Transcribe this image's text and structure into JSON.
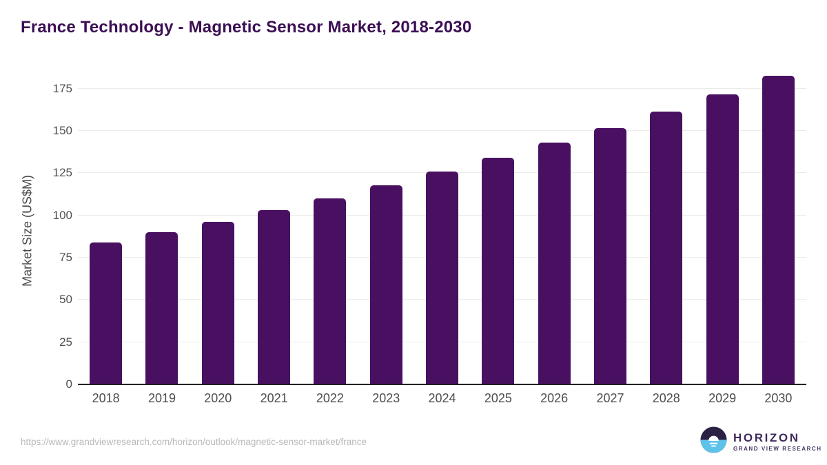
{
  "header": {
    "title": "France Technology - Magnetic Sensor Market, 2018-2030"
  },
  "chart_data": {
    "type": "bar",
    "categories": [
      "2018",
      "2019",
      "2020",
      "2021",
      "2022",
      "2023",
      "2024",
      "2025",
      "2026",
      "2027",
      "2028",
      "2029",
      "2030"
    ],
    "values": [
      84,
      90,
      96,
      103,
      110,
      118,
      126,
      134,
      143,
      151.5,
      161.5,
      171.5,
      182.5
    ],
    "title": "France Technology - Magnetic Sensor Market, 2018-2030",
    "xlabel": "",
    "ylabel": "Market Size (US$M)",
    "ylim": [
      0,
      175
    ],
    "yticks": [
      0,
      25,
      50,
      75,
      100,
      125,
      150,
      175
    ],
    "grid": true,
    "legend": false,
    "bar_color": "#491061"
  },
  "footer": {
    "source_url": "https://www.grandviewresearch.com/horizon/outlook/magnetic-sensor-market/france",
    "logo_name": "HORIZON",
    "logo_subtitle": "GRAND VIEW RESEARCH"
  },
  "colors": {
    "title_text": "#3b0f53",
    "bar": "#491061",
    "gridline": "#ebebeb",
    "axis_line": "#212121",
    "tick_label": "#4f4f4f",
    "url_text": "#b9b9b9",
    "logo_circle_top": "#2b2144",
    "logo_circle_bottom": "#5ec3e9",
    "logo_text": "#3e2a5c"
  }
}
